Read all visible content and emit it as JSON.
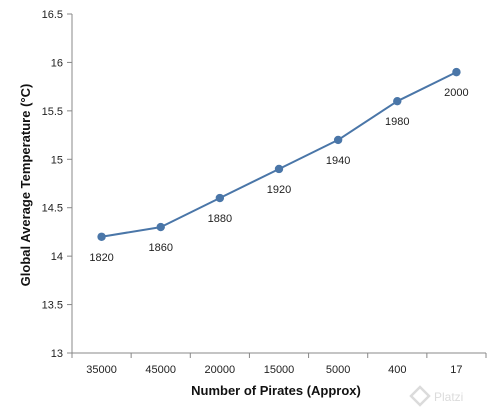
{
  "chart_data": {
    "type": "line",
    "title": "",
    "xlabel": "Number of Pirates (Approx)",
    "ylabel": "Global Average Temperature (°C)",
    "categories": [
      "35000",
      "45000",
      "20000",
      "15000",
      "5000",
      "400",
      "17"
    ],
    "series": [
      {
        "values": [
          14.2,
          14.3,
          14.6,
          14.9,
          15.2,
          15.6,
          15.9
        ],
        "data_labels": [
          "1820",
          "1860",
          "1880",
          "1920",
          "1940",
          "1980",
          "2000"
        ],
        "color": "#4a76a8"
      }
    ],
    "ylim": [
      13,
      16.5
    ],
    "yticks": [
      "13",
      "13.5",
      "14",
      "14.5",
      "15",
      "15.5",
      "16",
      "16.5"
    ],
    "grid": false,
    "legend": "none"
  },
  "watermark": {
    "text": "Platzi",
    "icon": "platzi-logo-icon"
  }
}
